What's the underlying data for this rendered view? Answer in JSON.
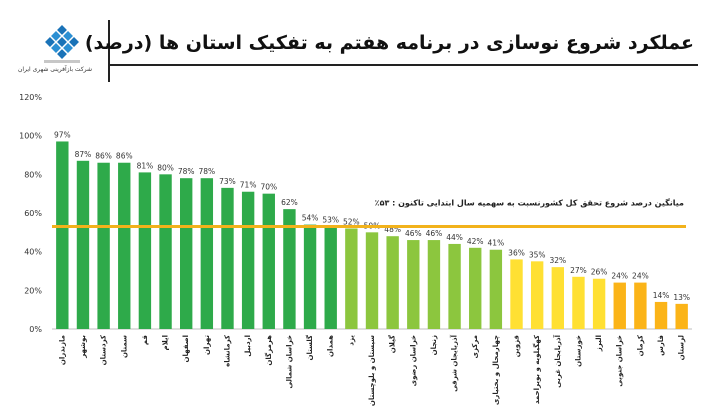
{
  "header": {
    "title": "عملکرد شروع نوسازی در برنامه هفتم به تفکیک استان ها (درصد)",
    "logo_text": "شرکت بازآفرینی شهری ایران"
  },
  "colors": {
    "dark_green": "#2eaa4a",
    "light_green": "#8cc63e",
    "yellow": "#ffe033",
    "orange": "#fbb418",
    "avg_line": "#f2b21b"
  },
  "chart_data": {
    "type": "bar",
    "categories": [
      "مازندران",
      "بوشهر",
      "کردستان",
      "سمنان",
      "قم",
      "ایلام",
      "اصفهان",
      "تهران",
      "کرمانشاه",
      "اردبیل",
      "هرمزگان",
      "خراسان شمالی",
      "گلستان",
      "همدان",
      "یزد",
      "سیستان و بلوچستان",
      "گیلان",
      "خراسان رضوی",
      "زنجان",
      "آذربایجان شرقی",
      "مرکزی",
      "چهارمحال و بختیاری",
      "قزوین",
      "کهگیلویه و بویراحمد",
      "آذربایجان غربی",
      "خوزستان",
      "البرز",
      "خراسان جنوبی",
      "کرمان",
      "فارس",
      "لرستان"
    ],
    "values": [
      97,
      87,
      86,
      86,
      81,
      80,
      78,
      78,
      73,
      71,
      70,
      62,
      54,
      53,
      52,
      50,
      48,
      46,
      46,
      44,
      42,
      41,
      36,
      35,
      32,
      27,
      26,
      24,
      24,
      14,
      13
    ],
    "data_labels": [
      "97%",
      "87%",
      "86%",
      "86%",
      "81%",
      "80%",
      "78%",
      "78%",
      "73%",
      "71%",
      "70%",
      "62%",
      "54%",
      "53%",
      "52%",
      "50%",
      "48%",
      "46%",
      "46%",
      "44%",
      "42%",
      "41%",
      "36%",
      "35%",
      "32%",
      "27%",
      "26%",
      "24%",
      "24%",
      "14%",
      "13%"
    ],
    "color_groups": [
      "dark_green",
      "dark_green",
      "dark_green",
      "dark_green",
      "dark_green",
      "dark_green",
      "dark_green",
      "dark_green",
      "dark_green",
      "dark_green",
      "dark_green",
      "dark_green",
      "dark_green",
      "dark_green",
      "light_green",
      "light_green",
      "light_green",
      "light_green",
      "light_green",
      "light_green",
      "light_green",
      "light_green",
      "yellow",
      "yellow",
      "yellow",
      "yellow",
      "yellow",
      "orange",
      "orange",
      "orange",
      "orange"
    ],
    "yticks": [
      "0%",
      "20%",
      "40%",
      "60%",
      "80%",
      "100%",
      "120%"
    ],
    "ylim": [
      0,
      120
    ],
    "average": 53,
    "average_label": "میانگین درصد شروع تحقق کل کشورنسبت به سهمیه سال ابتدایی تاکنون : ۵۳٪",
    "grid": false
  }
}
